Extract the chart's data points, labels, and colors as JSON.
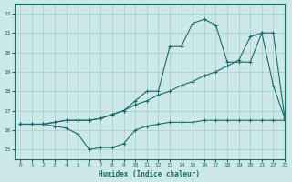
{
  "xlabel": "Humidex (Indice chaleur)",
  "bg_color": "#cde8e8",
  "grid_color": "#aacccc",
  "line_color": "#1a6b6b",
  "xlim": [
    -0.5,
    23
  ],
  "ylim": [
    14.5,
    22.5
  ],
  "xticks": [
    0,
    1,
    2,
    3,
    4,
    5,
    6,
    7,
    8,
    9,
    10,
    11,
    12,
    13,
    14,
    15,
    16,
    17,
    18,
    19,
    20,
    21,
    22,
    23
  ],
  "yticks": [
    15,
    16,
    17,
    18,
    19,
    20,
    21,
    22
  ],
  "line1_x": [
    0,
    1,
    2,
    3,
    4,
    5,
    6,
    7,
    8,
    9,
    10,
    11,
    12,
    13,
    14,
    15,
    16,
    17,
    18,
    19,
    20,
    21,
    22,
    23
  ],
  "line1_y": [
    16.3,
    16.3,
    16.3,
    16.2,
    16.1,
    15.8,
    15.0,
    15.1,
    15.1,
    15.3,
    16.0,
    16.2,
    16.3,
    16.4,
    16.4,
    16.4,
    16.5,
    16.5,
    16.5,
    16.5,
    16.5,
    16.5,
    16.5,
    16.5
  ],
  "line2_x": [
    0,
    1,
    2,
    3,
    4,
    5,
    6,
    7,
    8,
    9,
    10,
    11,
    12,
    13,
    14,
    15,
    16,
    17,
    18,
    19,
    20,
    21,
    22,
    23
  ],
  "line2_y": [
    16.3,
    16.3,
    16.3,
    16.4,
    16.5,
    16.5,
    16.5,
    16.6,
    16.8,
    17.0,
    17.3,
    17.5,
    17.8,
    18.0,
    18.3,
    18.5,
    18.8,
    19.0,
    19.3,
    19.6,
    20.8,
    21.0,
    21.0,
    16.6
  ],
  "line3_x": [
    0,
    1,
    2,
    3,
    4,
    5,
    6,
    7,
    8,
    9,
    10,
    11,
    12,
    13,
    14,
    15,
    16,
    17,
    18,
    19,
    20,
    21,
    22,
    23
  ],
  "line3_y": [
    16.3,
    16.3,
    16.3,
    16.4,
    16.5,
    16.5,
    16.5,
    16.6,
    16.8,
    17.0,
    17.5,
    18.0,
    18.0,
    20.3,
    20.3,
    21.5,
    21.7,
    21.4,
    19.5,
    19.5,
    19.5,
    21.0,
    18.3,
    16.6
  ]
}
